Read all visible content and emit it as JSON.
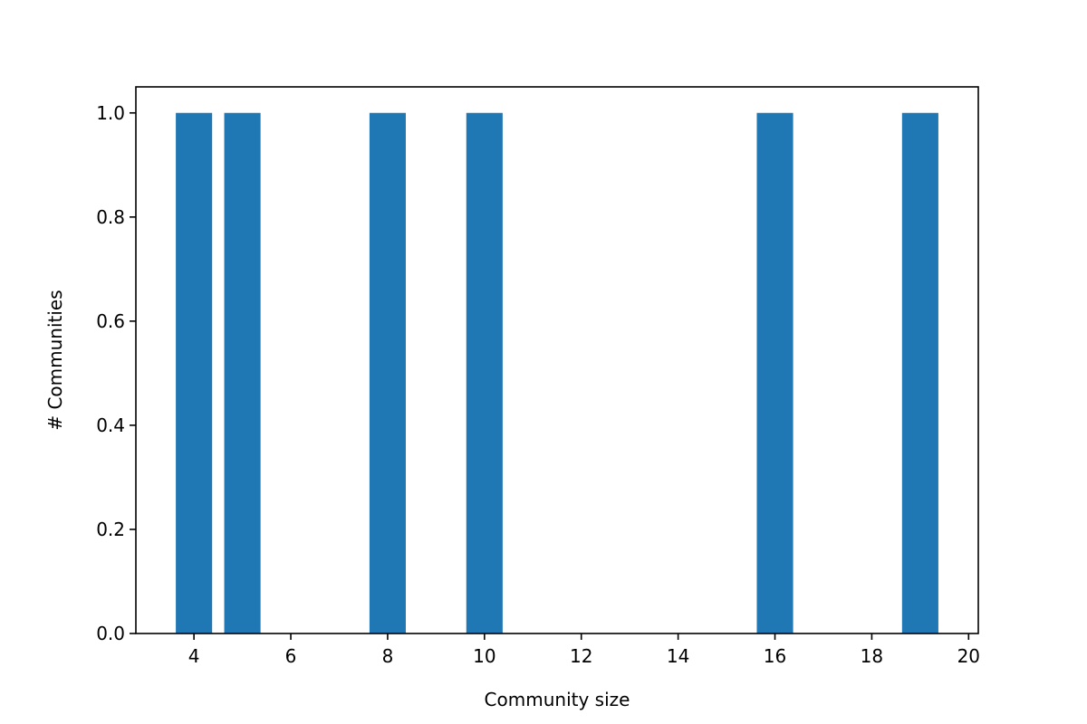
{
  "chart_data": {
    "type": "bar",
    "x": [
      4,
      5,
      8,
      10,
      16,
      19
    ],
    "values": [
      1,
      1,
      1,
      1,
      1,
      1
    ],
    "bar_width": 0.75,
    "title": "",
    "xlabel": "Community size",
    "ylabel": "# Communities",
    "xlim": [
      2.8,
      20.2
    ],
    "ylim": [
      0,
      1.05
    ],
    "xticks": [
      4,
      6,
      8,
      10,
      12,
      14,
      16,
      18,
      20
    ],
    "yticks": [
      0.0,
      0.2,
      0.4,
      0.6,
      0.8,
      1.0
    ],
    "ytick_labels": [
      "0.0",
      "0.2",
      "0.4",
      "0.6",
      "0.8",
      "1.0"
    ],
    "bar_color": "#1f77b4",
    "grid": false,
    "legend": "none"
  }
}
